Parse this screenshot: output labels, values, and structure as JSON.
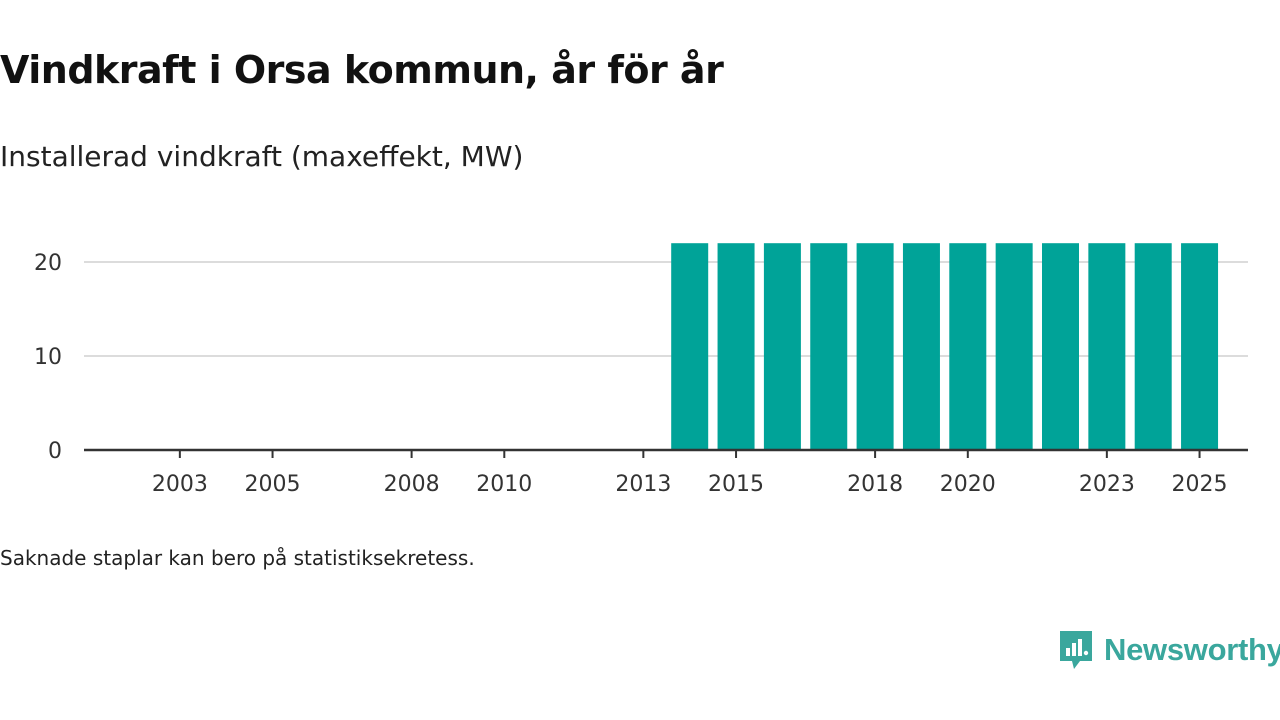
{
  "title": "Vindkraft i Orsa kommun, år för år",
  "subtitle": "Installerad vindkraft (maxeffekt, MW)",
  "footnote": "Saknade staplar kan bero på statistiksekretess.",
  "brand": {
    "name": "Newsworthy",
    "color": "#3aa79d"
  },
  "chart_data": {
    "type": "bar",
    "title": "",
    "xlabel": "",
    "ylabel": "",
    "categories": [
      2002,
      2003,
      2004,
      2005,
      2006,
      2007,
      2008,
      2009,
      2010,
      2011,
      2012,
      2013,
      2014,
      2015,
      2016,
      2017,
      2018,
      2019,
      2020,
      2021,
      2022,
      2023,
      2024,
      2025
    ],
    "values": [
      null,
      null,
      null,
      null,
      null,
      null,
      null,
      null,
      null,
      null,
      null,
      null,
      22,
      22,
      22,
      22,
      22,
      22,
      22,
      22,
      22,
      22,
      22,
      22
    ],
    "x_tick_labels": [
      2003,
      2005,
      2008,
      2010,
      2013,
      2015,
      2018,
      2020,
      2023,
      2025
    ],
    "y_ticks": [
      0,
      10,
      20
    ],
    "ylim": [
      0,
      22
    ],
    "grid": "horizontal",
    "bar_color": "#00a398"
  }
}
